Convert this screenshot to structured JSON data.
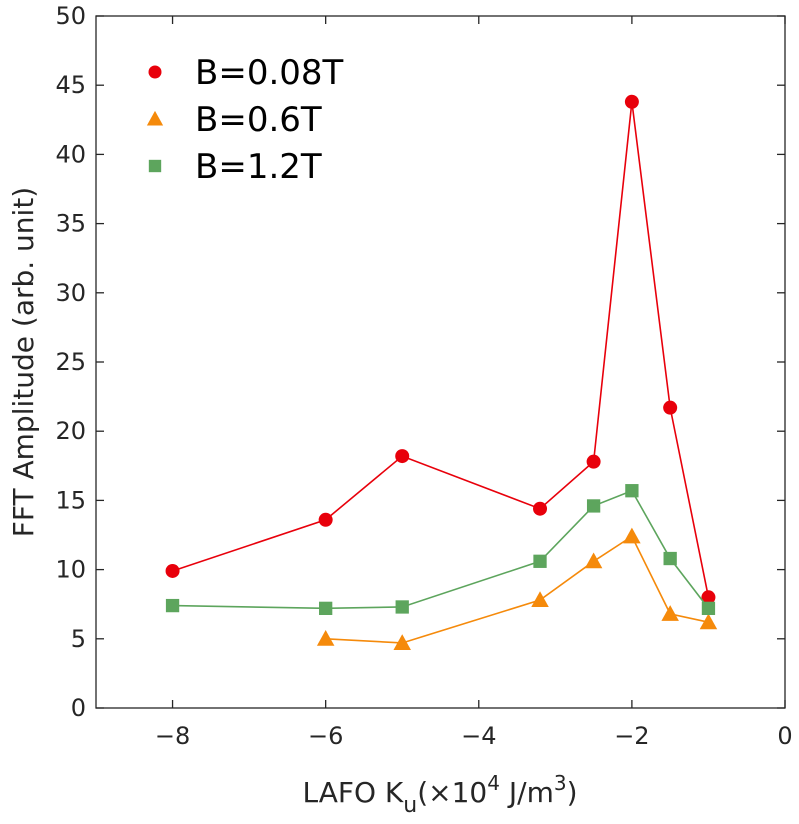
{
  "chart_data": {
    "type": "line",
    "title": "",
    "xlabel": "LAFO K",
    "xlabel_sub": "u",
    "xlabel_unit_pre": "(×10",
    "xlabel_sup": "4",
    "xlabel_unit_mid": " J/m",
    "xlabel_sup2": "3",
    "xlabel_unit_post": ")",
    "ylabel": "FFT Amplitude (arb. unit)",
    "xlim": [
      -9,
      0
    ],
    "ylim": [
      0,
      50
    ],
    "xticks": [
      -8,
      -6,
      -4,
      -2,
      0
    ],
    "xtick_labels": [
      "−8",
      "−6",
      "−4",
      "−2",
      "0"
    ],
    "yticks": [
      0,
      5,
      10,
      15,
      20,
      25,
      30,
      35,
      40,
      45,
      50
    ],
    "ytick_labels": [
      "0",
      "5",
      "10",
      "15",
      "20",
      "25",
      "30",
      "35",
      "40",
      "45",
      "50"
    ],
    "grid": false,
    "legend_position": "top-left",
    "series": [
      {
        "name": "B=0.08T",
        "color": "#e8000b",
        "marker": "circle",
        "x": [
          -8,
          -6,
          -5,
          -3.2,
          -2.5,
          -2,
          -1.5,
          -1
        ],
        "y": [
          9.9,
          13.6,
          18.2,
          14.4,
          17.8,
          43.8,
          21.7,
          8.0
        ]
      },
      {
        "name": "B=0.6T",
        "color": "#f58a0b",
        "marker": "triangle",
        "x": [
          -6,
          -5,
          -3.2,
          -2.5,
          -2,
          -1.5,
          -1
        ],
        "y": [
          5.0,
          4.7,
          7.8,
          10.6,
          12.4,
          6.8,
          6.2
        ]
      },
      {
        "name": "B=1.2T",
        "color": "#5da55d",
        "marker": "square",
        "x": [
          -8,
          -6,
          -5,
          -3.2,
          -2.5,
          -2,
          -1.5,
          -1
        ],
        "y": [
          7.4,
          7.2,
          7.3,
          10.6,
          14.6,
          15.7,
          10.8,
          7.2
        ]
      }
    ]
  }
}
